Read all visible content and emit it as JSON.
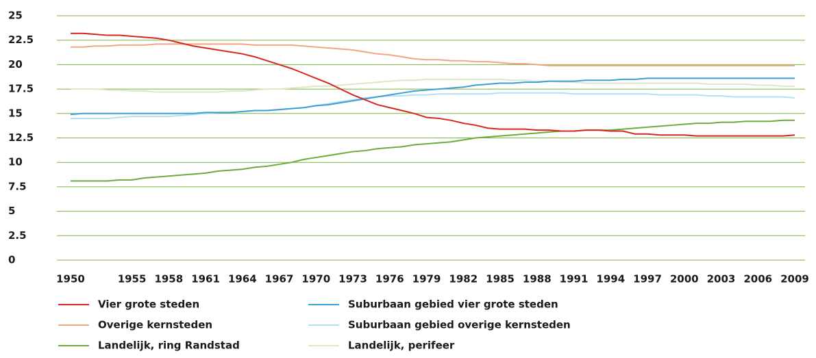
{
  "chart_data": {
    "type": "line",
    "x": [
      1950,
      1951,
      1952,
      1953,
      1954,
      1955,
      1956,
      1957,
      1958,
      1959,
      1960,
      1961,
      1962,
      1963,
      1964,
      1965,
      1966,
      1967,
      1968,
      1969,
      1970,
      1971,
      1972,
      1973,
      1974,
      1975,
      1976,
      1977,
      1978,
      1979,
      1980,
      1981,
      1982,
      1983,
      1984,
      1985,
      1986,
      1987,
      1988,
      1989,
      1990,
      1991,
      1992,
      1993,
      1994,
      1995,
      1996,
      1997,
      1998,
      1999,
      2000,
      2001,
      2002,
      2003,
      2004,
      2005,
      2006,
      2007,
      2008,
      2009
    ],
    "xlim": [
      1950,
      2009
    ],
    "xticks": [
      1950,
      1955,
      1958,
      1961,
      1964,
      1967,
      1970,
      1973,
      1976,
      1979,
      1982,
      1985,
      1988,
      1991,
      1994,
      1997,
      2000,
      2003,
      2006,
      2009
    ],
    "ylim": [
      0,
      25
    ],
    "yticks": [
      0,
      2.5,
      5,
      7.5,
      10,
      12.5,
      15,
      17.5,
      20,
      22.5,
      25
    ],
    "grid": true,
    "series": [
      {
        "name": "Vier grote steden",
        "color": "#d7261e",
        "values": [
          23.2,
          23.2,
          23.1,
          23.0,
          23.0,
          22.9,
          22.8,
          22.7,
          22.5,
          22.2,
          21.9,
          21.7,
          21.5,
          21.3,
          21.1,
          20.8,
          20.4,
          20.0,
          19.6,
          19.1,
          18.6,
          18.1,
          17.5,
          16.9,
          16.4,
          15.9,
          15.6,
          15.3,
          15.0,
          14.6,
          14.5,
          14.3,
          14.0,
          13.8,
          13.5,
          13.4,
          13.4,
          13.4,
          13.3,
          13.3,
          13.2,
          13.2,
          13.3,
          13.3,
          13.2,
          13.2,
          12.9,
          12.9,
          12.8,
          12.8,
          12.8,
          12.7,
          12.7,
          12.7,
          12.7,
          12.7,
          12.7,
          12.7,
          12.7,
          12.8
        ]
      },
      {
        "name": "Suburbaan gebied vier grote steden",
        "color": "#3a9fd6",
        "values": [
          14.9,
          15.0,
          15.0,
          15.0,
          15.0,
          15.0,
          15.0,
          15.0,
          15.0,
          15.0,
          15.0,
          15.1,
          15.1,
          15.1,
          15.2,
          15.3,
          15.3,
          15.4,
          15.5,
          15.6,
          15.8,
          15.9,
          16.1,
          16.3,
          16.5,
          16.7,
          16.9,
          17.1,
          17.3,
          17.4,
          17.5,
          17.6,
          17.7,
          17.9,
          18.0,
          18.1,
          18.1,
          18.2,
          18.2,
          18.3,
          18.3,
          18.3,
          18.4,
          18.4,
          18.4,
          18.5,
          18.5,
          18.6,
          18.6,
          18.6,
          18.6,
          18.6,
          18.6,
          18.6,
          18.6,
          18.6,
          18.6,
          18.6,
          18.6,
          18.6
        ]
      },
      {
        "name": "Overige kernsteden",
        "color": "#f2a582",
        "values": [
          21.8,
          21.8,
          21.9,
          21.9,
          22.0,
          22.0,
          22.0,
          22.1,
          22.1,
          22.1,
          22.1,
          22.1,
          22.1,
          22.1,
          22.1,
          22.0,
          22.0,
          22.0,
          22.0,
          21.9,
          21.8,
          21.7,
          21.6,
          21.5,
          21.3,
          21.1,
          21.0,
          20.8,
          20.6,
          20.5,
          20.5,
          20.4,
          20.4,
          20.3,
          20.3,
          20.2,
          20.1,
          20.1,
          20.0,
          19.9,
          19.9,
          19.9,
          19.9,
          19.9,
          19.9,
          19.9,
          19.9,
          19.9,
          19.9,
          19.9,
          19.9,
          19.9,
          19.9,
          19.9,
          19.9,
          19.9,
          19.9,
          19.9,
          19.9,
          19.9
        ]
      },
      {
        "name": "Suburbaan gebied overige kernsteden",
        "color": "#b3def3",
        "values": [
          14.5,
          14.5,
          14.5,
          14.5,
          14.6,
          14.7,
          14.7,
          14.7,
          14.7,
          14.8,
          14.9,
          15.0,
          15.1,
          15.1,
          15.2,
          15.3,
          15.3,
          15.4,
          15.5,
          15.6,
          15.8,
          16.0,
          16.2,
          16.4,
          16.6,
          16.7,
          16.8,
          16.8,
          16.9,
          16.9,
          17.0,
          17.0,
          17.0,
          17.0,
          17.0,
          17.1,
          17.1,
          17.1,
          17.1,
          17.1,
          17.1,
          17.0,
          17.0,
          17.0,
          17.0,
          17.0,
          17.0,
          17.0,
          16.9,
          16.9,
          16.9,
          16.9,
          16.8,
          16.8,
          16.7,
          16.7,
          16.7,
          16.7,
          16.7,
          16.6
        ]
      },
      {
        "name": "Landelijk, ring Randstad",
        "color": "#6aab3a",
        "values": [
          8.1,
          8.1,
          8.1,
          8.1,
          8.2,
          8.2,
          8.4,
          8.5,
          8.6,
          8.7,
          8.8,
          8.9,
          9.1,
          9.2,
          9.3,
          9.5,
          9.6,
          9.8,
          10.0,
          10.3,
          10.5,
          10.7,
          10.9,
          11.1,
          11.2,
          11.4,
          11.5,
          11.6,
          11.8,
          11.9,
          12.0,
          12.1,
          12.3,
          12.5,
          12.6,
          12.7,
          12.8,
          12.9,
          13.0,
          13.1,
          13.2,
          13.2,
          13.3,
          13.3,
          13.3,
          13.4,
          13.5,
          13.6,
          13.7,
          13.8,
          13.9,
          14.0,
          14.0,
          14.1,
          14.1,
          14.2,
          14.2,
          14.2,
          14.3,
          14.3
        ]
      },
      {
        "name": "Landelijk, perifeer",
        "color": "#e0e6c8",
        "values": [
          17.5,
          17.5,
          17.5,
          17.4,
          17.4,
          17.3,
          17.3,
          17.2,
          17.2,
          17.2,
          17.2,
          17.2,
          17.2,
          17.3,
          17.3,
          17.4,
          17.5,
          17.5,
          17.6,
          17.7,
          17.8,
          17.8,
          17.9,
          18.0,
          18.1,
          18.2,
          18.3,
          18.4,
          18.4,
          18.5,
          18.5,
          18.5,
          18.5,
          18.5,
          18.5,
          18.5,
          18.4,
          18.4,
          18.3,
          18.3,
          18.2,
          18.2,
          18.1,
          18.1,
          18.1,
          18.1,
          18.1,
          18.1,
          18.1,
          18.1,
          18.1,
          18.1,
          18.0,
          18.0,
          18.0,
          18.0,
          17.9,
          17.9,
          17.8,
          17.8
        ]
      }
    ]
  }
}
